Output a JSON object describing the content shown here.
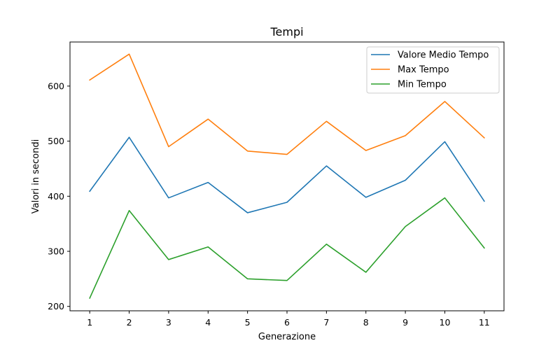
{
  "chart_data": {
    "type": "line",
    "title": "Tempi",
    "xlabel": "Generazione",
    "ylabel": "Valori in secondi",
    "x": [
      1,
      2,
      3,
      4,
      5,
      6,
      7,
      8,
      9,
      10,
      11
    ],
    "xticks": [
      "1",
      "2",
      "3",
      "4",
      "5",
      "6",
      "7",
      "8",
      "9",
      "10",
      "11"
    ],
    "yticks": [
      200,
      300,
      400,
      500,
      600
    ],
    "xlim": [
      0.5,
      11.5
    ],
    "ylim": [
      192,
      680
    ],
    "grid": false,
    "legend_position": "top-right",
    "series": [
      {
        "name": "Valore Medio Tempo",
        "color": "#1f77b4",
        "values": [
          409,
          507,
          397,
          425,
          370,
          389,
          455,
          398,
          429,
          499,
          391
        ]
      },
      {
        "name": "Max Tempo",
        "color": "#ff7f0e",
        "values": [
          611,
          658,
          490,
          540,
          482,
          476,
          536,
          483,
          510,
          572,
          506
        ]
      },
      {
        "name": "Min Tempo",
        "color": "#2ca02c",
        "values": [
          215,
          374,
          285,
          308,
          250,
          247,
          313,
          262,
          345,
          397,
          306
        ]
      }
    ]
  }
}
